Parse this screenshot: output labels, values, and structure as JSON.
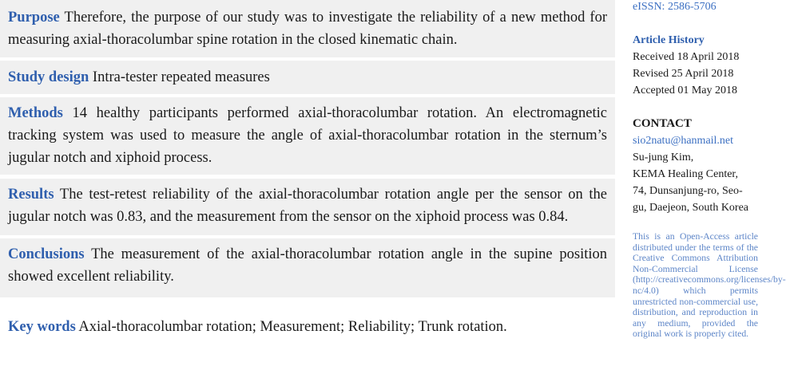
{
  "abstract": {
    "purpose": {
      "label": "Purpose",
      "text": "Therefore, the purpose of our study was to investigate the reliability of a new method for measuring axial-thoracolumbar spine rotation in the closed kinematic chain."
    },
    "study_design": {
      "label": "Study design",
      "text": "Intra-tester repeated measures"
    },
    "methods": {
      "label": "Methods",
      "text": "14 healthy participants performed axial-thoracolumbar rotation. An electromagnetic tracking system was used to measure the angle of axial-thoracolumbar rotation in the sternum’s jugular notch and xiphoid process."
    },
    "results": {
      "label": "Results",
      "text": "The test-retest reliability of the axial-thoracolumbar rotation angle per the sensor on the jugular notch was 0.83, and the measurement from the sensor on the xiphoid process was 0.84."
    },
    "conclusions": {
      "label": "Conclusions",
      "text": "The measurement of the axial-thoracolumbar rotation angle in the supine position showed excellent reliability."
    },
    "keywords": {
      "label": "Key words",
      "text": "Axial-thoracolumbar rotation; Measurement; Reliability; Trunk rotation."
    }
  },
  "sidebar": {
    "eissn": "eISSN: 2586-5706",
    "history": {
      "title": "Article History",
      "received": "Received 18 April 2018",
      "revised": "Revised 25 April 2018",
      "accepted": "Accepted 01 May 2018"
    },
    "contact": {
      "title": "CONTACT",
      "email": "sio2natu@hanmail.net",
      "lines": [
        "Su-jung Kim,",
        "KEMA Healing Center,",
        "74, Dunsanjung-ro, Seo-",
        "gu, Daejeon, South Korea"
      ]
    },
    "license": "This is an Open-Access article distributed under the terms of the Creative Commons Attribution Non-Commercial License (http://creativecommons.org/licenses/by-nc/4.0) which permits unrestricted non-commercial use, distribution, and reproduction in any medium, provided the original work is properly cited."
  },
  "colors": {
    "label_blue": "#2f5fae",
    "box_gray": "#f0f0f0",
    "license_blue": "#5e86c8"
  }
}
